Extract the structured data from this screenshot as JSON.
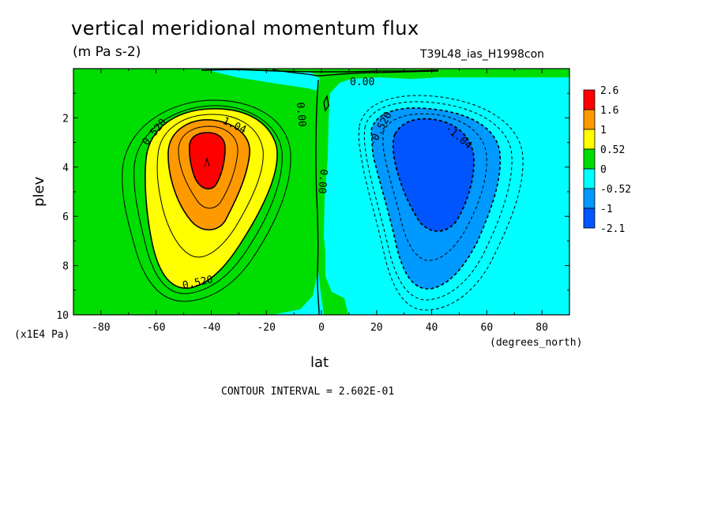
{
  "chart_data": {
    "type": "contour",
    "title": "vertical meridional momentum flux",
    "units": "(m Pa s-2)",
    "run_label": "T39L48_ias_H1998con",
    "xlabel": "lat",
    "x_units": "(degrees_north)",
    "ylabel": "plev",
    "y_units": "(x1E4 Pa)",
    "xlim": [
      -90,
      90
    ],
    "ylim": [
      0,
      10
    ],
    "y_inverted": true,
    "x_ticks": [
      "-80",
      "-60",
      "-40",
      "-20",
      "0",
      "20",
      "40",
      "60",
      "80"
    ],
    "y_ticks": [
      "2",
      "4",
      "6",
      "8",
      "10"
    ],
    "contour_interval_text": "CONTOUR INTERVAL = 2.602E-01",
    "colorbar": {
      "labels": [
        "2.6",
        "1.6",
        "1",
        "0.52",
        "0",
        "-0.52",
        "-1",
        "-2.1"
      ],
      "colors": [
        "#ff0000",
        "#ff9900",
        "#ffff00",
        "#00dd00",
        "#00ffff",
        "#0099ff",
        "#0055ff"
      ]
    },
    "contour_labels": [
      "0.520",
      "1.04",
      "0.520",
      "-0.520",
      "-1.04",
      "0.00",
      "0.00",
      "0.00"
    ],
    "extrema": {
      "southern_max": {
        "lat": -40,
        "plev": 3.8,
        "value_range": "1.6 to 2.6"
      },
      "northern_min": {
        "lat": 42,
        "plev": 4.0,
        "value_range": "-2.1 to -1"
      }
    }
  }
}
